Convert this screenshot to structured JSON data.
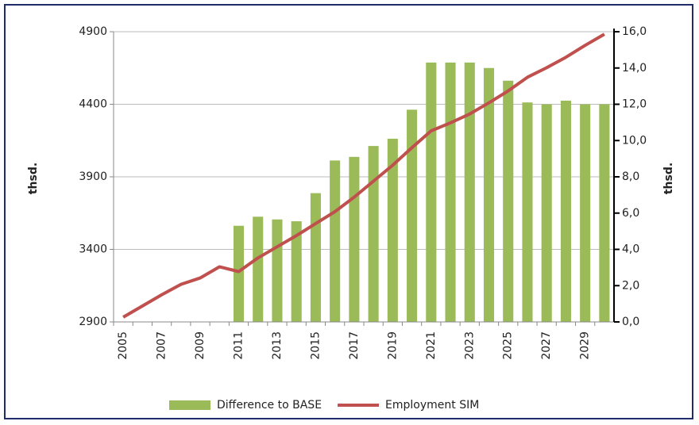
{
  "chart_data": {
    "type": "bar-line",
    "categories": [
      "2005",
      null,
      "2007",
      null,
      "2009",
      null,
      "2011",
      null,
      "2013",
      null,
      "2015",
      null,
      "2017",
      null,
      "2019",
      null,
      "2021",
      null,
      "2023",
      null,
      "2025",
      null,
      "2027",
      null,
      "2029",
      null
    ],
    "y_label": "thsd.",
    "y2_label": "thsd.",
    "ylim": [
      2900,
      4900
    ],
    "yticks": [
      2900,
      3400,
      3900,
      4400,
      4900
    ],
    "y2lim": [
      0,
      16
    ],
    "y2ticks": [
      {
        "value": 0,
        "label": "0,0"
      },
      {
        "value": 2,
        "label": "2,0"
      },
      {
        "value": 4,
        "label": "4,0"
      },
      {
        "value": 6,
        "label": "6,0"
      },
      {
        "value": 8,
        "label": "8,0"
      },
      {
        "value": 10,
        "label": "10,0"
      },
      {
        "value": 12,
        "label": "12,0"
      },
      {
        "value": 14,
        "label": "14,0"
      },
      {
        "value": 16,
        "label": "16,0"
      }
    ],
    "grid": true,
    "series": [
      {
        "name": "Difference to BASE",
        "type": "bar",
        "axis": "y2",
        "color": "#9bbb59",
        "values": [
          null,
          null,
          null,
          null,
          null,
          null,
          5.3,
          5.8,
          5.65,
          5.55,
          7.1,
          8.9,
          9.1,
          9.7,
          10.1,
          11.7,
          14.3,
          14.3,
          14.3,
          14.0,
          13.3,
          12.1,
          12.0,
          12.2,
          12.0,
          12.0
        ]
      },
      {
        "name": "Employment SIM",
        "type": "line",
        "color": "#c0504d",
        "values": [
          2933,
          3010,
          3087,
          3159,
          3203,
          3280,
          3247,
          3341,
          3418,
          3495,
          3578,
          3660,
          3760,
          3870,
          3980,
          4101,
          4217,
          4272,
          4333,
          4410,
          4492,
          4586,
          4652,
          4724,
          4806,
          4883
        ]
      }
    ]
  }
}
